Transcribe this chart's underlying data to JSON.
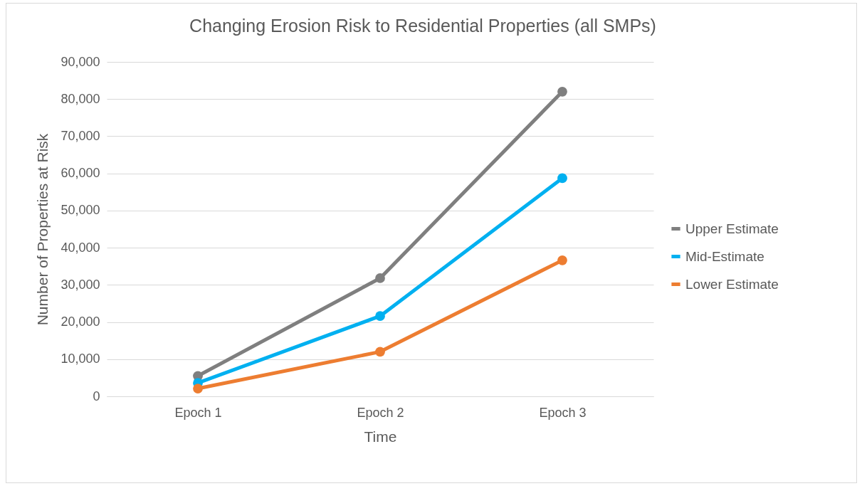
{
  "chart_data": {
    "type": "line",
    "title": "Changing Erosion Risk to Residential Properties (all SMPs)",
    "xlabel": "Time",
    "ylabel": "Number of Properties at Risk",
    "categories": [
      "Epoch 1",
      "Epoch 2",
      "Epoch 3"
    ],
    "series": [
      {
        "name": "Upper Estimate",
        "color": "#7f7f7f",
        "values": [
          5500,
          31800,
          82000
        ]
      },
      {
        "name": "Mid-Estimate",
        "color": "#00b0f0",
        "values": [
          3600,
          21600,
          58700
        ]
      },
      {
        "name": "Lower Estimate",
        "color": "#ed7d31",
        "values": [
          2100,
          12000,
          36600
        ]
      }
    ],
    "ylim": [
      0,
      90000
    ],
    "yticks": [
      0,
      {
        "value": 10000,
        "label": "10,000"
      },
      {
        "value": 20000,
        "label": "20,000"
      },
      {
        "value": 30000,
        "label": "30,000"
      },
      {
        "value": 40000,
        "label": "40,000"
      },
      {
        "value": 50000,
        "label": "50,000"
      },
      {
        "value": 60000,
        "label": "60,000"
      },
      {
        "value": 70000,
        "label": "70,000"
      },
      {
        "value": 80000,
        "label": "80,000"
      },
      {
        "value": 90000,
        "label": "90,000"
      }
    ],
    "grid": "y",
    "legend": "right",
    "marker": "circle",
    "line_style": "solid"
  }
}
